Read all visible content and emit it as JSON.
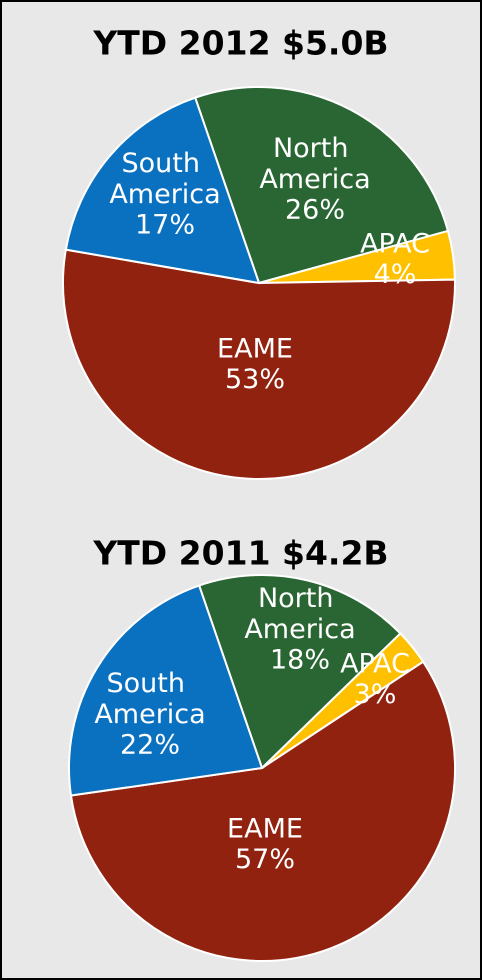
{
  "chart_data": [
    {
      "type": "pie",
      "title": "YTD 2012 $5.0B",
      "categories": [
        "North America",
        "APAC",
        "EAME",
        "South America"
      ],
      "values": [
        26,
        4,
        53,
        17
      ],
      "value_labels": [
        "26%",
        "4%",
        "53%",
        "17%"
      ],
      "colors": [
        "#2a6633",
        "#ffc000",
        "#922210",
        "#0a70c0"
      ]
    },
    {
      "type": "pie",
      "title": "YTD 2011 $4.2B",
      "categories": [
        "North America",
        "APAC",
        "EAME",
        "South America"
      ],
      "values": [
        18,
        3,
        57,
        22
      ],
      "value_labels": [
        "18%",
        "3%",
        "57%",
        "22%"
      ],
      "colors": [
        "#2a6633",
        "#ffc000",
        "#922210",
        "#0a70c0"
      ]
    }
  ]
}
